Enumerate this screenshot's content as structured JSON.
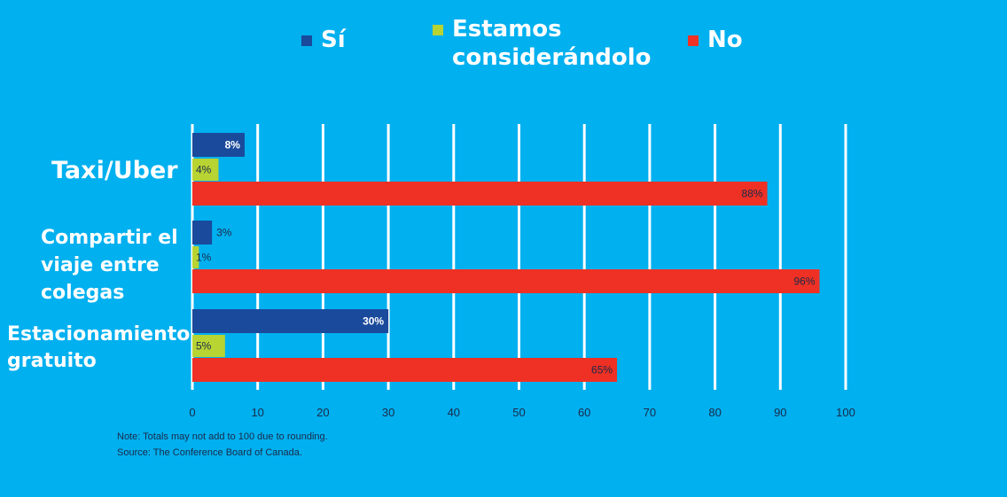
{
  "chart_data": {
    "type": "bar",
    "orientation": "horizontal",
    "categories": [
      "Taxi/Uber",
      "Compartir el\nviaje entre\ncolegas",
      "Estacionamiento\ngratuito"
    ],
    "series": [
      {
        "name": "Sí",
        "color": "#1a4a9c",
        "values": [
          8,
          3,
          30
        ],
        "labels": [
          "8%",
          "3%",
          "30%"
        ]
      },
      {
        "name": "Estamos\nconsiderándolo",
        "color": "#b7d433",
        "values": [
          4,
          1,
          5
        ],
        "labels": [
          "4%",
          "1%",
          "5%"
        ]
      },
      {
        "name": "No",
        "color": "#ee3124",
        "values": [
          88,
          96,
          65
        ],
        "labels": [
          "88%",
          "96%",
          "65%"
        ]
      }
    ],
    "xlim": [
      0,
      100
    ],
    "xticks": [
      0,
      10,
      20,
      30,
      40,
      50,
      60,
      70,
      80,
      90,
      100
    ],
    "grid": true,
    "legend_position": "top"
  },
  "notes": {
    "note": "Note: Totals may not add to 100 due to rounding.",
    "source": "Source: The Conference Board of Canada."
  },
  "colors": {
    "background": "#00b0ef",
    "grid": "#ffffff",
    "axis_text": "#1b2a4a"
  }
}
